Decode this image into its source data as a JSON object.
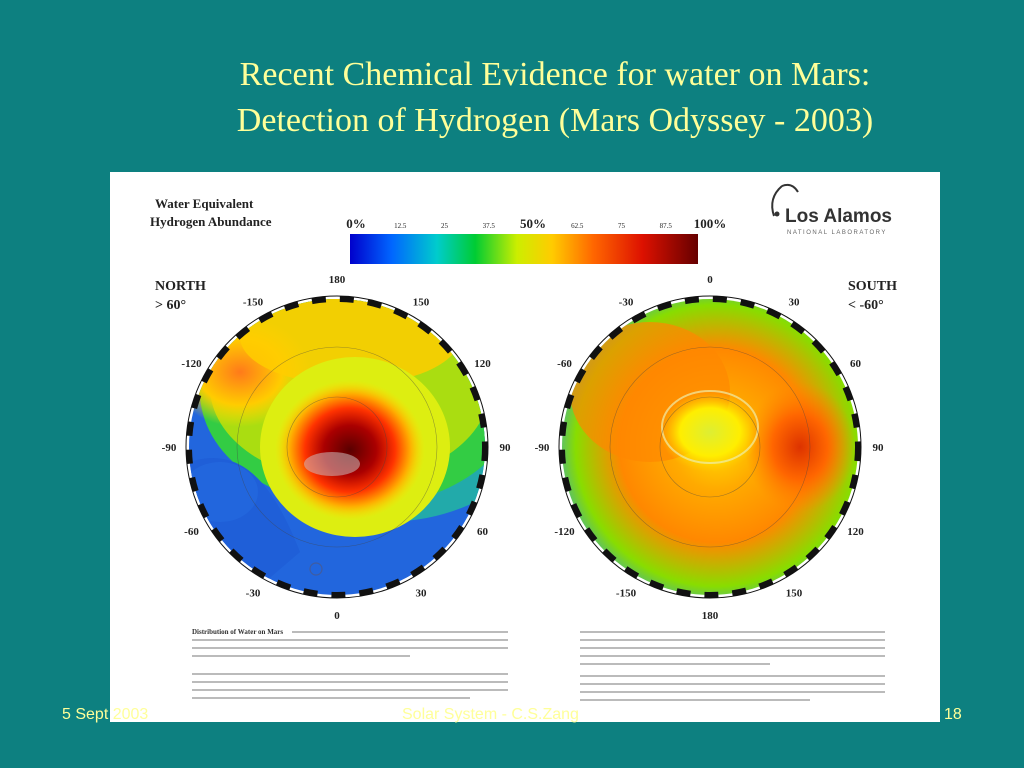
{
  "slide": {
    "title_line1": "Recent Chemical Evidence for water on Mars:",
    "title_line2": "Detection of Hydrogen  (Mars Odyssey - 2003)"
  },
  "figure": {
    "legend_title_line1": "Water Equivalent",
    "legend_title_line2": "Hydrogen Abundance",
    "scale_labels": [
      "0%",
      "12.5",
      "25",
      "37.5",
      "50%",
      "62.5",
      "75",
      "87.5",
      "100%"
    ],
    "logo_text": "Los Alamos",
    "logo_subtext": "NATIONAL LABORATORY",
    "north": {
      "label_line1": "NORTH",
      "label_line2": "> 60°",
      "ticks": [
        "180",
        "-150",
        "150",
        "-120",
        "120",
        "-90",
        "90",
        "-60",
        "60",
        "-30",
        "30",
        "0"
      ]
    },
    "south": {
      "label_line1": "SOUTH",
      "label_line2": "< -60°",
      "ticks": [
        "0",
        "-30",
        "30",
        "-60",
        "60",
        "-90",
        "90",
        "-120",
        "120",
        "-150",
        "150",
        "180"
      ]
    },
    "caption_left_title": "Distribution of Water on Mars"
  },
  "footer": {
    "date": "5 Sept 2003",
    "center": "Solar System - C.S.Zang",
    "page": "18"
  },
  "colors": {
    "background": "#0d8080",
    "title": "#ffff99"
  }
}
